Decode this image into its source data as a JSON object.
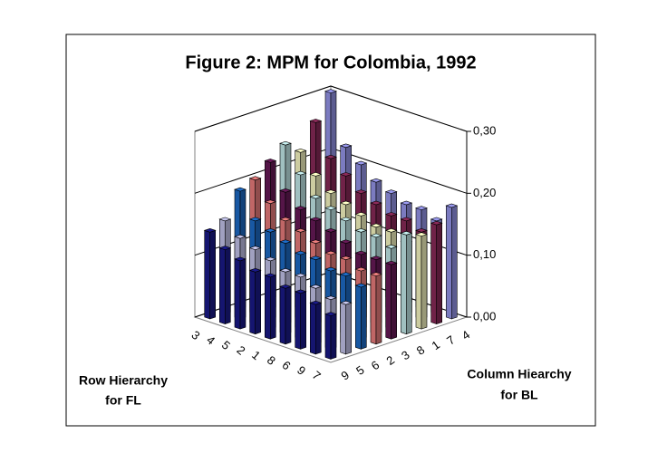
{
  "chart_data": {
    "type": "bar3d",
    "title": "Figure 2: MPM for Colombia, 1992",
    "x_label": [
      "Row Hierarchy",
      "for FL"
    ],
    "y_label": [
      "Column Hiearchy",
      "for BL"
    ],
    "categories": [
      "3",
      "4",
      "5",
      "2",
      "1",
      "8",
      "6",
      "9",
      "7"
    ],
    "series": [
      {
        "name": "9",
        "color": "#1a1a8c",
        "values": [
          0.14,
          0.12,
          0.11,
          0.1,
          0.1,
          0.09,
          0.09,
          0.08,
          0.07
        ]
      },
      {
        "name": "5",
        "color": "#c8c8f0",
        "values": [
          0.15,
          0.13,
          0.12,
          0.11,
          0.1,
          0.1,
          0.09,
          0.08,
          0.08
        ]
      },
      {
        "name": "6",
        "color": "#1e6ecc",
        "values": [
          0.19,
          0.15,
          0.14,
          0.13,
          0.12,
          0.12,
          0.11,
          0.11,
          0.1
        ]
      },
      {
        "name": "2",
        "color": "#f08080",
        "values": [
          0.2,
          0.17,
          0.15,
          0.14,
          0.13,
          0.12,
          0.12,
          0.11,
          0.11
        ]
      },
      {
        "name": "3",
        "color": "#6a1a5a",
        "values": [
          0.22,
          0.18,
          0.16,
          0.15,
          0.14,
          0.13,
          0.12,
          0.12,
          0.12
        ]
      },
      {
        "name": "8",
        "color": "#c8f0f0",
        "values": [
          0.24,
          0.2,
          0.17,
          0.16,
          0.15,
          0.14,
          0.14,
          0.13,
          0.16
        ]
      },
      {
        "name": "1",
        "color": "#ffffc8",
        "values": [
          0.22,
          0.19,
          0.17,
          0.16,
          0.15,
          0.14,
          0.14,
          0.13,
          0.15
        ]
      },
      {
        "name": "7",
        "color": "#8c2a5a",
        "values": [
          0.26,
          0.21,
          0.19,
          0.17,
          0.16,
          0.15,
          0.15,
          0.14,
          0.16
        ]
      },
      {
        "name": "4",
        "color": "#9a9af0",
        "values": [
          0.3,
          0.22,
          0.2,
          0.18,
          0.17,
          0.16,
          0.16,
          0.15,
          0.18
        ]
      }
    ],
    "zlim": [
      0,
      0.3
    ],
    "zticks": [
      {
        "value": 0,
        "label": "0,00"
      },
      {
        "value": 0.1,
        "label": "0,10"
      },
      {
        "value": 0.2,
        "label": "0,20"
      },
      {
        "value": 0.3,
        "label": "0,30"
      }
    ],
    "grid": true
  }
}
